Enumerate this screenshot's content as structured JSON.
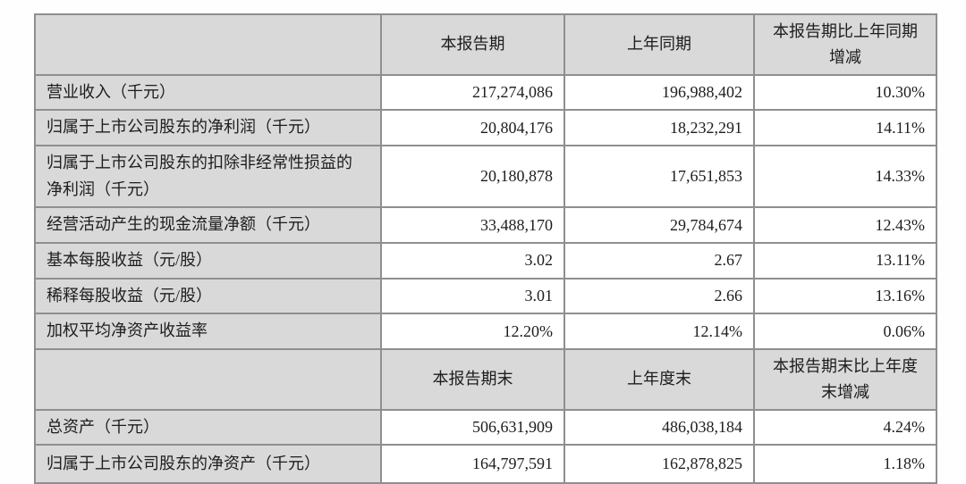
{
  "colors": {
    "header_bg": "#d9d9d9",
    "label_bg": "#d9d9d9",
    "cell_bg": "#ffffff",
    "border": "#8f8f8f",
    "text": "#1d1d1d"
  },
  "table": {
    "section1": {
      "corner": "",
      "headers": [
        "本报告期",
        "上年同期",
        "本报告期比上年同期增减"
      ],
      "rows": [
        {
          "label": "营业收入（千元）",
          "current": "217,274,086",
          "prior": "196,988,402",
          "change": "10.30%"
        },
        {
          "label": "归属于上市公司股东的净利润（千元）",
          "current": "20,804,176",
          "prior": "18,232,291",
          "change": "14.11%"
        },
        {
          "label": "归属于上市公司股东的扣除非经常性损益的净利润（千元）",
          "current": "20,180,878",
          "prior": "17,651,853",
          "change": "14.33%"
        },
        {
          "label": "经营活动产生的现金流量净额（千元）",
          "current": "33,488,170",
          "prior": "29,784,674",
          "change": "12.43%"
        },
        {
          "label": "基本每股收益（元/股）",
          "current": "3.02",
          "prior": "2.67",
          "change": "13.11%"
        },
        {
          "label": "稀释每股收益（元/股）",
          "current": "3.01",
          "prior": "2.66",
          "change": "13.16%"
        },
        {
          "label": "加权平均净资产收益率",
          "current": "12.20%",
          "prior": "12.14%",
          "change": "0.06%"
        }
      ]
    },
    "section2": {
      "corner": "",
      "headers": [
        "本报告期末",
        "上年度末",
        "本报告期末比上年度末增减"
      ],
      "rows": [
        {
          "label": "总资产（千元）",
          "current": "506,631,909",
          "prior": "486,038,184",
          "change": "4.24%"
        },
        {
          "label": "归属于上市公司股东的净资产（千元）",
          "current": "164,797,591",
          "prior": "162,878,825",
          "change": "1.18%"
        }
      ]
    }
  }
}
